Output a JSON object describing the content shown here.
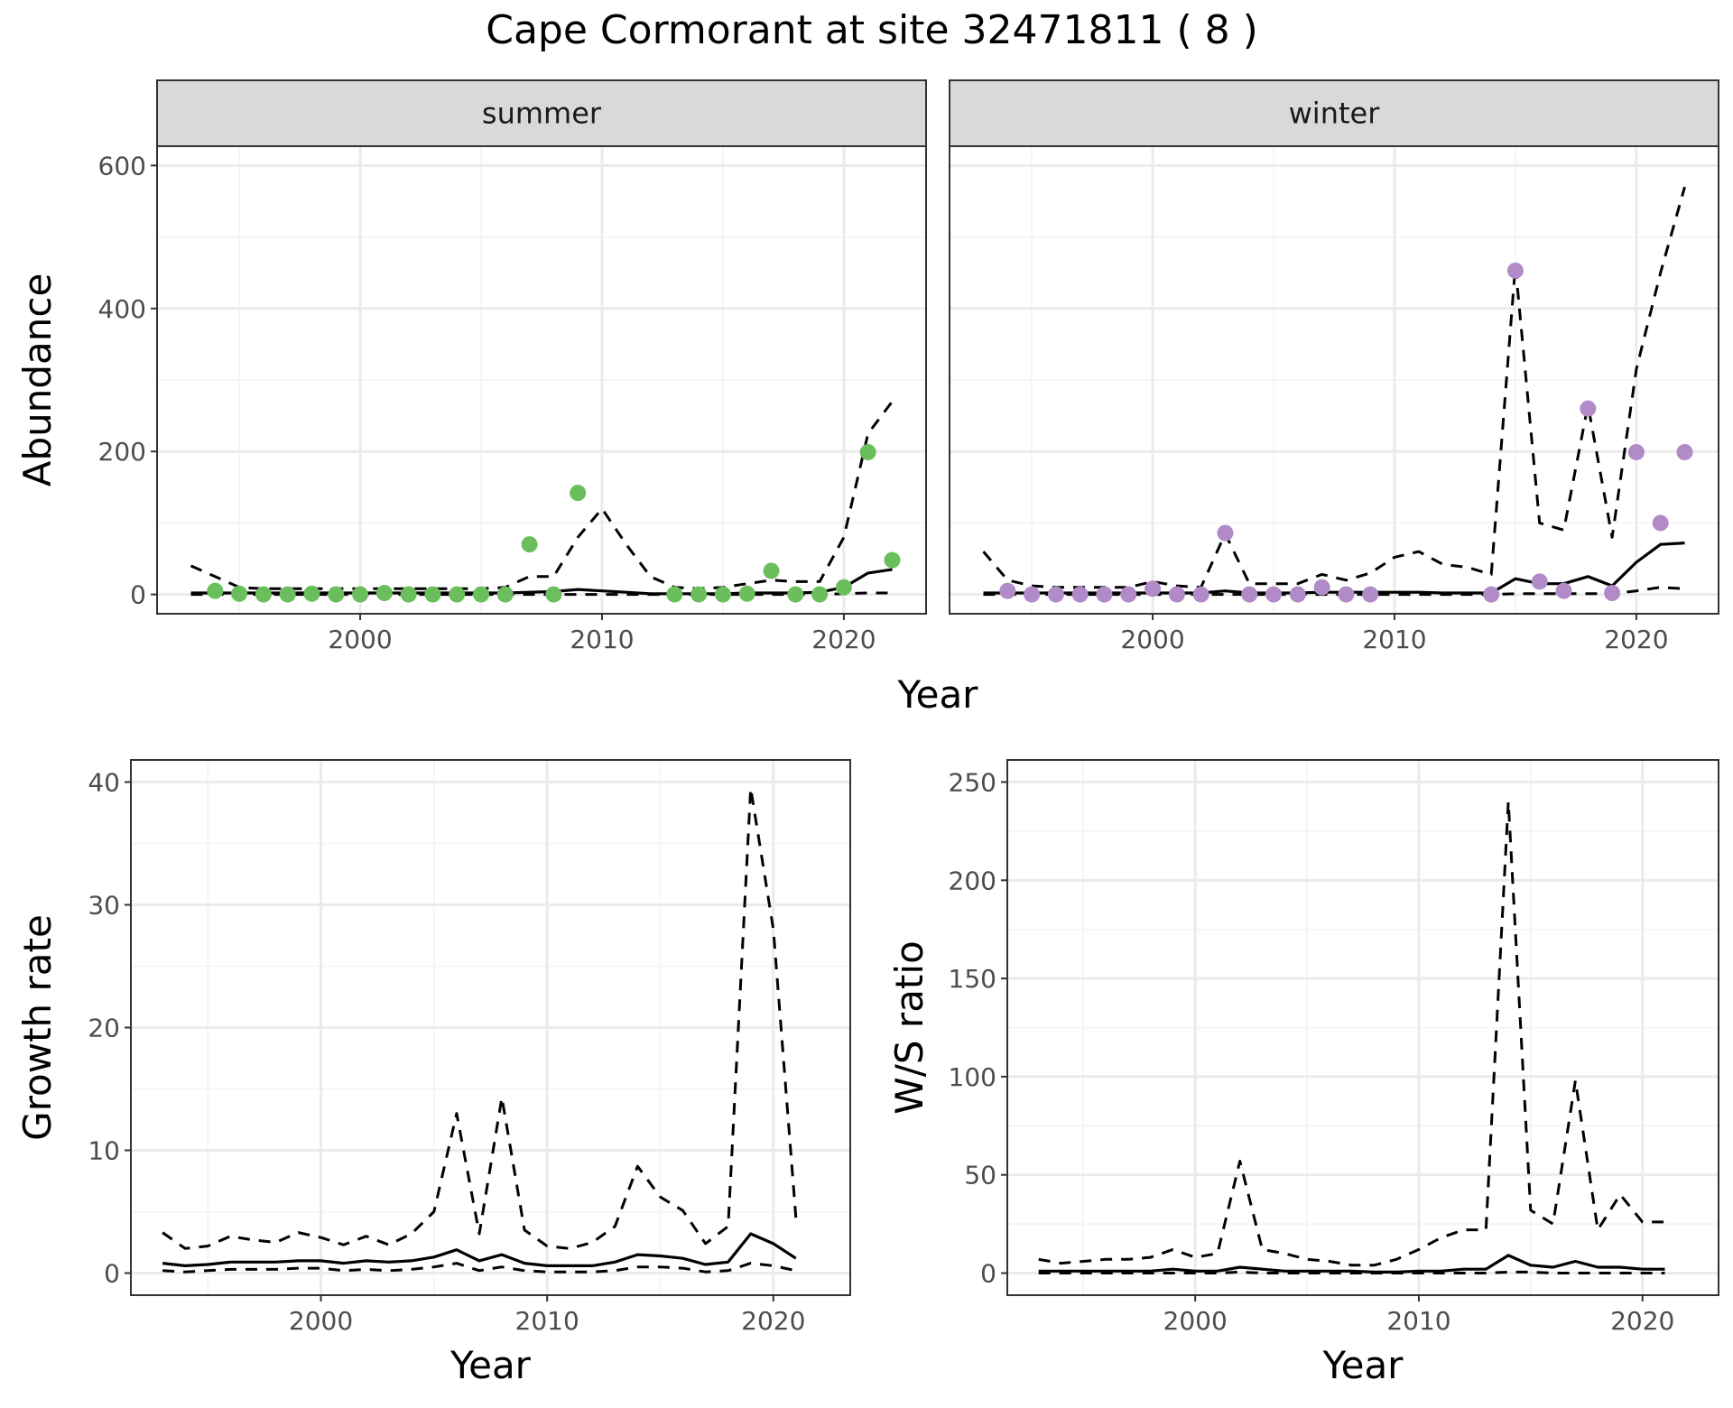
{
  "figure": {
    "title": "Cape Cormorant at site 32471811 ( 8 )"
  },
  "colors": {
    "summer_points": "#6abf5c",
    "winter_points": "#b18ac8",
    "lines": "#000000",
    "strip_background": "#d9d9d9",
    "grid": "#ebebeb",
    "border": "#333333"
  },
  "chart_data": [
    {
      "id": "abundance",
      "type": "line",
      "ylabel": "Abundance",
      "xlabel": "Year",
      "ylim": [
        0,
        600
      ],
      "yticks": [
        0,
        200,
        400,
        600
      ],
      "xticks": [
        2000,
        2010,
        2020
      ],
      "grid": true,
      "line_styles": {
        "estimate": "solid",
        "ci_low": "dashed",
        "ci_high": "dashed"
      },
      "facets": [
        {
          "strip": "summer",
          "points": {
            "x": [
              1994,
              1995,
              1996,
              1997,
              1998,
              1999,
              2000,
              2001,
              2002,
              2003,
              2004,
              2005,
              2006,
              2007,
              2008,
              2009,
              2013,
              2014,
              2015,
              2016,
              2017,
              2018,
              2019,
              2020,
              2021,
              2022
            ],
            "y": [
              5,
              1,
              0,
              0,
              1,
              0,
              0,
              2,
              0,
              0,
              0,
              0,
              0,
              70,
              0,
              142,
              0,
              0,
              0,
              1,
              33,
              0,
              0,
              10,
              199,
              48
            ]
          },
          "lines": {
            "x": [
              1993,
              1994,
              1995,
              1996,
              1997,
              1998,
              1999,
              2000,
              2001,
              2002,
              2003,
              2004,
              2005,
              2006,
              2007,
              2008,
              2009,
              2010,
              2011,
              2012,
              2013,
              2014,
              2015,
              2016,
              2017,
              2018,
              2019,
              2020,
              2021,
              2022
            ],
            "estimate": [
              2,
              2,
              2,
              2,
              2,
              2,
              2,
              2,
              2,
              2,
              2,
              2,
              2,
              2,
              3,
              4,
              7,
              5,
              3,
              1,
              1,
              1,
              1,
              2,
              2,
              2,
              3,
              10,
              30,
              35
            ],
            "ci_low": [
              0,
              0,
              0,
              0,
              0,
              0,
              0,
              0,
              0,
              0,
              0,
              0,
              0,
              0,
              0,
              0,
              0,
              0,
              0,
              0,
              0,
              0,
              0,
              0,
              0,
              0,
              0,
              1,
              2,
              2
            ],
            "ci_high": [
              40,
              25,
              10,
              8,
              8,
              8,
              8,
              8,
              8,
              8,
              8,
              8,
              8,
              10,
              25,
              25,
              80,
              120,
              70,
              25,
              10,
              8,
              10,
              15,
              20,
              18,
              18,
              80,
              225,
              270
            ]
          }
        },
        {
          "strip": "winter",
          "points": {
            "x": [
              1994,
              1995,
              1996,
              1997,
              1998,
              1999,
              2000,
              2001,
              2002,
              2003,
              2004,
              2005,
              2006,
              2007,
              2008,
              2009,
              2014,
              2015,
              2016,
              2017,
              2018,
              2019,
              2020,
              2021,
              2022
            ],
            "y": [
              5,
              0,
              0,
              0,
              0,
              0,
              8,
              0,
              0,
              86,
              0,
              0,
              0,
              10,
              0,
              0,
              0,
              453,
              18,
              5,
              260,
              2,
              199,
              100,
              199
            ]
          },
          "lines": {
            "x": [
              1993,
              1994,
              1995,
              1996,
              1997,
              1998,
              1999,
              2000,
              2001,
              2002,
              2003,
              2004,
              2005,
              2006,
              2007,
              2008,
              2009,
              2010,
              2011,
              2012,
              2013,
              2014,
              2015,
              2016,
              2017,
              2018,
              2019,
              2020,
              2021,
              2022
            ],
            "estimate": [
              2,
              2,
              2,
              2,
              2,
              2,
              2,
              2,
              2,
              2,
              5,
              2,
              2,
              2,
              3,
              3,
              3,
              3,
              3,
              2,
              2,
              2,
              22,
              15,
              15,
              25,
              12,
              45,
              70,
              72
            ],
            "ci_low": [
              0,
              0,
              0,
              0,
              0,
              0,
              0,
              0,
              0,
              0,
              0,
              0,
              0,
              0,
              0,
              0,
              0,
              0,
              0,
              0,
              0,
              0,
              1,
              1,
              1,
              1,
              1,
              5,
              10,
              8
            ],
            "ci_high": [
              60,
              20,
              12,
              10,
              10,
              10,
              10,
              18,
              12,
              10,
              85,
              15,
              15,
              15,
              28,
              20,
              30,
              52,
              60,
              42,
              38,
              28,
              460,
              100,
              90,
              265,
              80,
              315,
              450,
              570
            ]
          }
        }
      ]
    },
    {
      "id": "growth_rate",
      "type": "line",
      "ylabel": "Growth rate",
      "xlabel": "Year",
      "ylim": [
        0,
        40
      ],
      "yticks": [
        0,
        10,
        20,
        30,
        40
      ],
      "xticks": [
        2000,
        2010,
        2020
      ],
      "grid": true,
      "lines": {
        "x": [
          1993,
          1994,
          1995,
          1996,
          1997,
          1998,
          1999,
          2000,
          2001,
          2002,
          2003,
          2004,
          2005,
          2006,
          2007,
          2008,
          2009,
          2010,
          2011,
          2012,
          2013,
          2014,
          2015,
          2016,
          2017,
          2018,
          2019,
          2020,
          2021
        ],
        "estimate": [
          0.8,
          0.6,
          0.7,
          0.9,
          0.9,
          0.9,
          1.0,
          1.0,
          0.8,
          1.0,
          0.9,
          1.0,
          1.3,
          1.9,
          1.0,
          1.5,
          0.8,
          0.6,
          0.6,
          0.6,
          0.9,
          1.5,
          1.4,
          1.2,
          0.7,
          0.9,
          3.2,
          2.4,
          1.2
        ],
        "ci_low": [
          0.2,
          0.1,
          0.2,
          0.3,
          0.3,
          0.3,
          0.4,
          0.4,
          0.2,
          0.3,
          0.2,
          0.3,
          0.5,
          0.8,
          0.2,
          0.5,
          0.2,
          0.1,
          0.1,
          0.1,
          0.2,
          0.5,
          0.5,
          0.4,
          0.1,
          0.2,
          0.8,
          0.6,
          0.2
        ],
        "ci_high": [
          3.3,
          2.0,
          2.2,
          3.0,
          2.7,
          2.5,
          3.3,
          2.9,
          2.3,
          3.0,
          2.3,
          3.2,
          5.0,
          13.0,
          3.2,
          14.3,
          3.5,
          2.2,
          2.0,
          2.5,
          3.8,
          8.7,
          6.2,
          5.1,
          2.4,
          3.8,
          39.5,
          28.0,
          4.5
        ]
      }
    },
    {
      "id": "ws_ratio",
      "type": "line",
      "ylabel": "W/S ratio",
      "xlabel": "Year",
      "ylim": [
        0,
        250
      ],
      "yticks": [
        0,
        50,
        100,
        150,
        200,
        250
      ],
      "xticks": [
        2000,
        2010,
        2020
      ],
      "grid": true,
      "lines": {
        "x": [
          1993,
          1994,
          1995,
          1996,
          1997,
          1998,
          1999,
          2000,
          2001,
          2002,
          2003,
          2004,
          2005,
          2006,
          2007,
          2008,
          2009,
          2010,
          2011,
          2012,
          2013,
          2014,
          2015,
          2016,
          2017,
          2018,
          2019,
          2020,
          2021
        ],
        "estimate": [
          1,
          1,
          1,
          1,
          1,
          1,
          2,
          1,
          1,
          3,
          2,
          1,
          1,
          1,
          1,
          0.5,
          0.5,
          1,
          1,
          2,
          2,
          9,
          4,
          3,
          6,
          3,
          3,
          2,
          2
        ],
        "ci_low": [
          0,
          0,
          0,
          0,
          0,
          0,
          0,
          0,
          0,
          0.5,
          0,
          0,
          0,
          0,
          0,
          0,
          0,
          0,
          0,
          0,
          0,
          0.5,
          0.5,
          0,
          0,
          0,
          0,
          0,
          0
        ],
        "ci_high": [
          7,
          5,
          6,
          7,
          7,
          8,
          12,
          8,
          10,
          57,
          12,
          10,
          7,
          6,
          4,
          4,
          7,
          12,
          18,
          22,
          22,
          240,
          32,
          25,
          98,
          22,
          40,
          26,
          26
        ]
      }
    }
  ]
}
